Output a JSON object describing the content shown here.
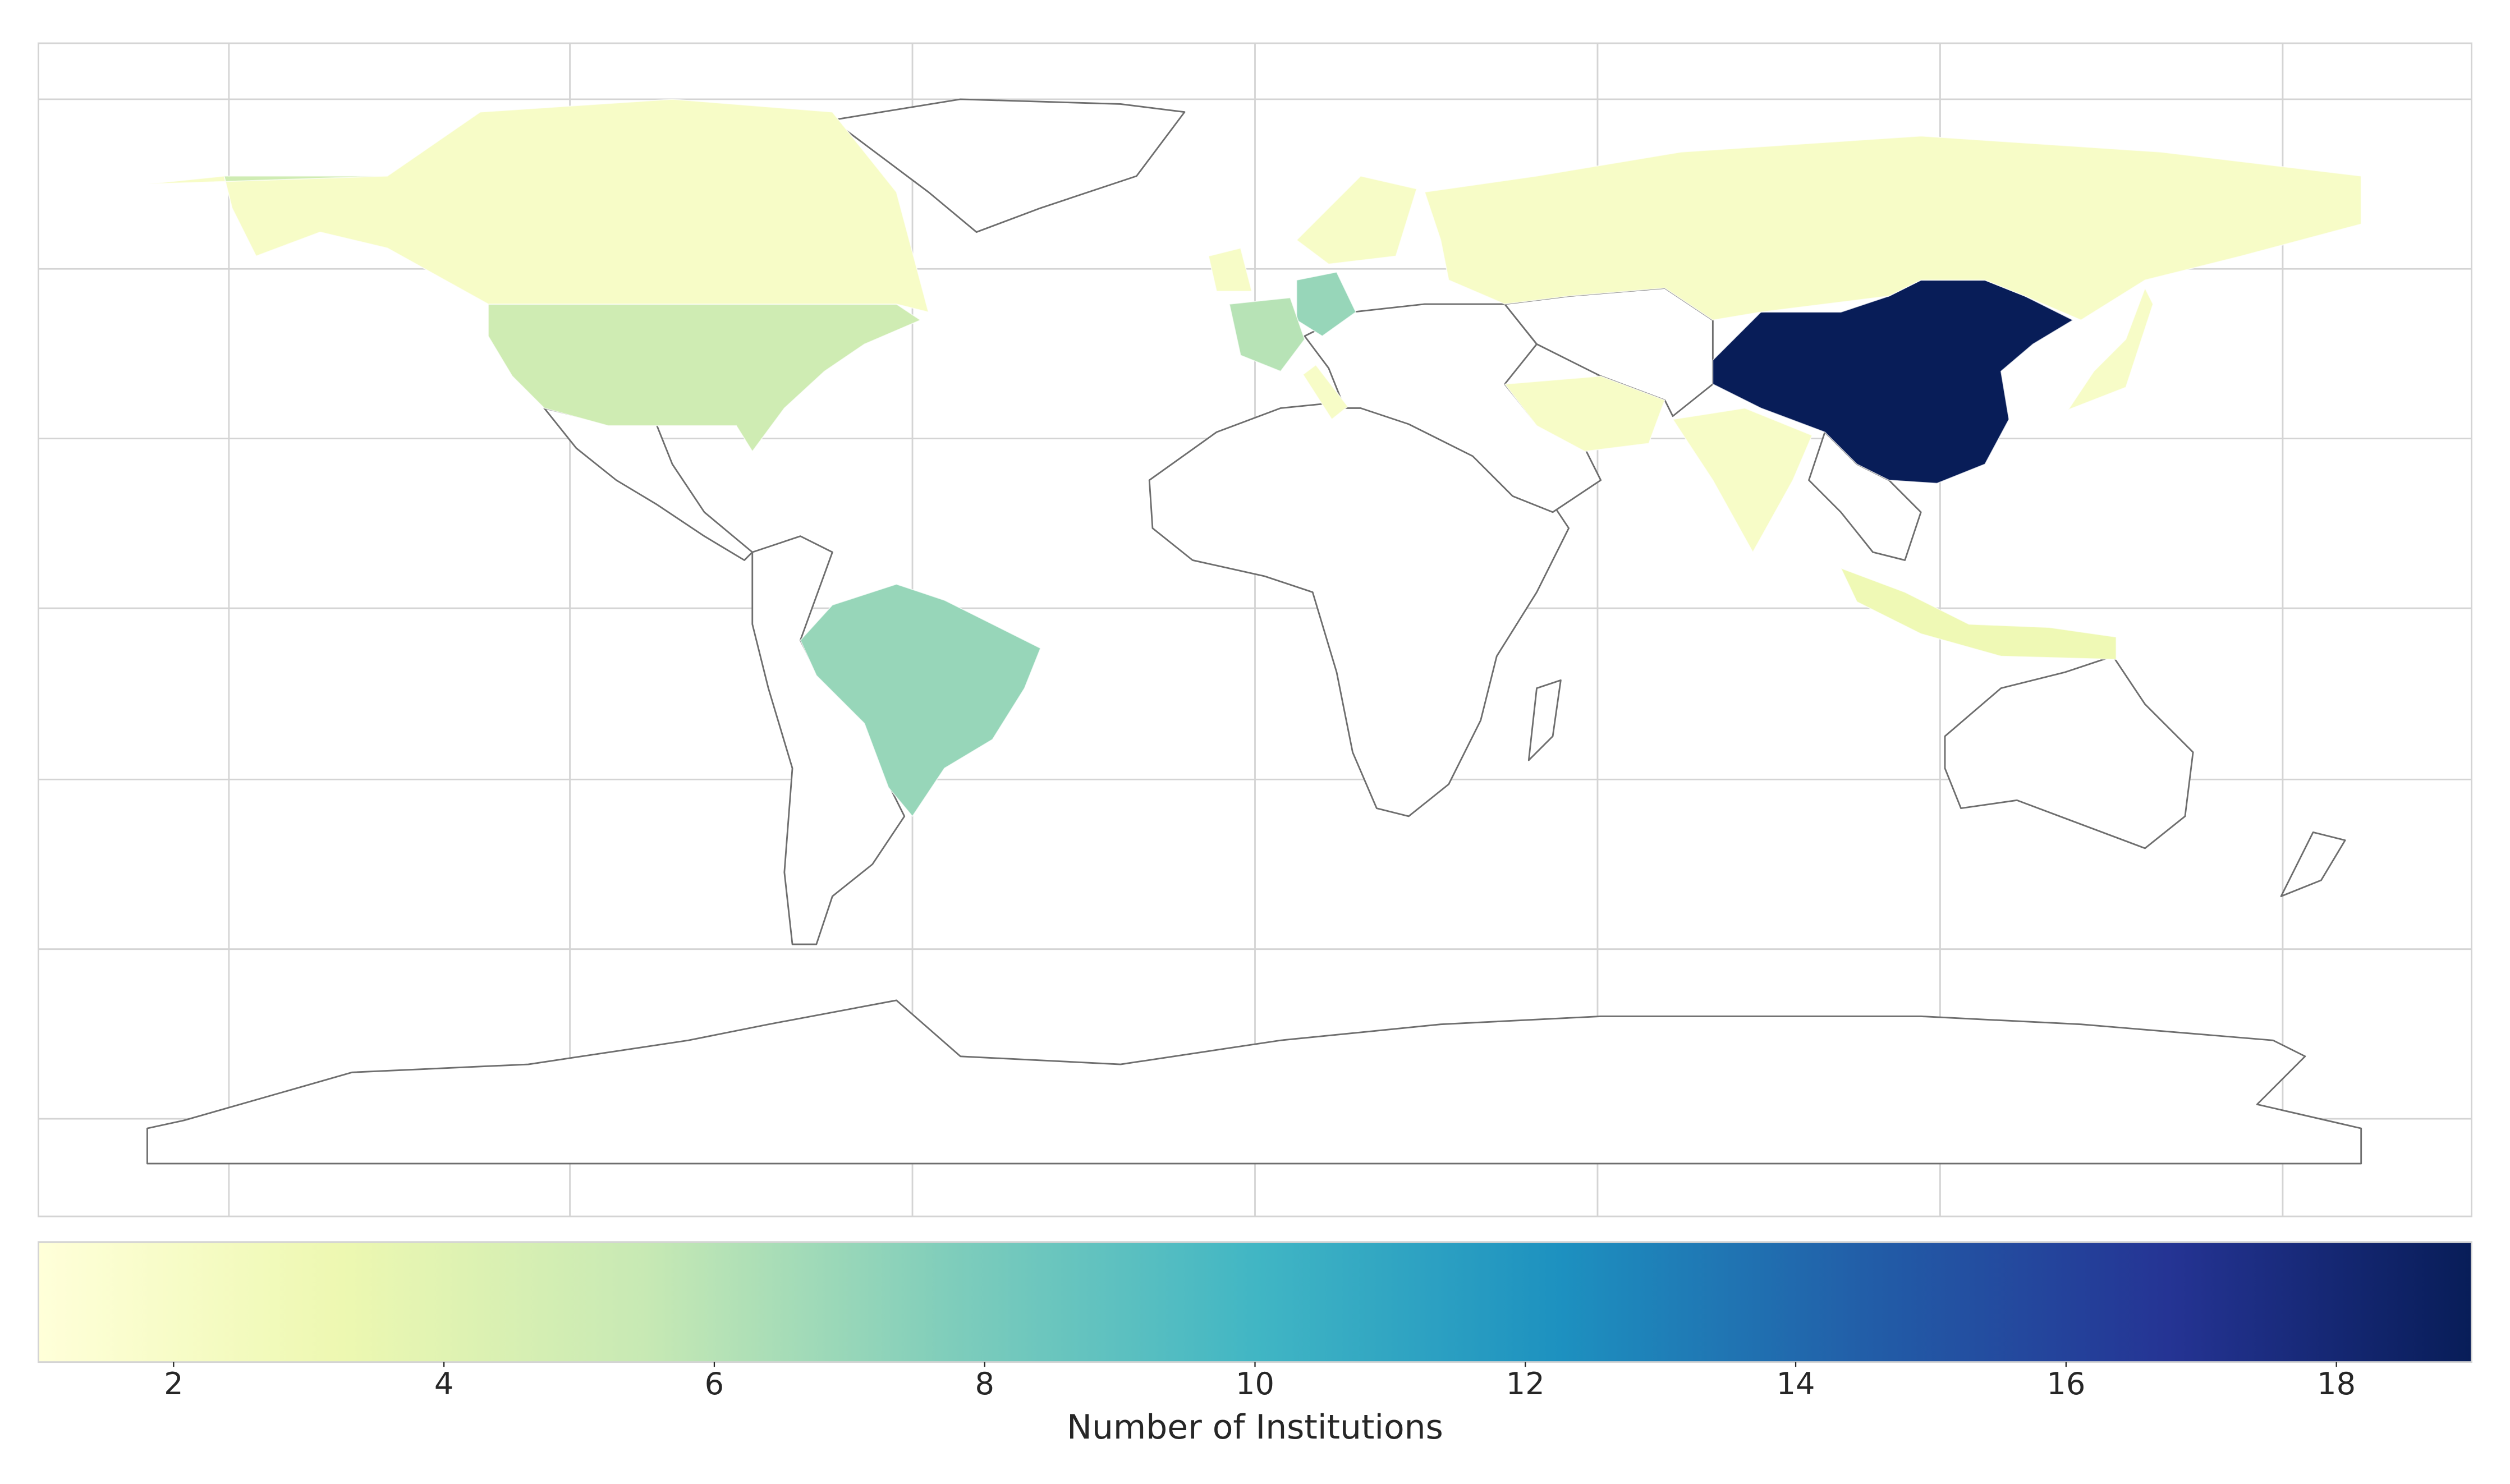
{
  "chart_data": {
    "type": "choropleth",
    "values": [
      19,
      5,
      2,
      7,
      2,
      7,
      6,
      2,
      2,
      2,
      2,
      3,
      2,
      2
    ],
    "colormap": [
      "#ffffd9",
      "#edf8b1",
      "#c7e9b4",
      "#7fcdbb",
      "#41b6c4",
      "#1d91c0",
      "#225ea8",
      "#253494",
      "#081d58"
    ],
    "clim": [
      1,
      19
    ],
    "cticks": [
      2,
      4,
      6,
      8,
      10,
      12,
      14,
      16,
      18
    ],
    "colorbar_label": "Number of Institutions",
    "grid": true
  }
}
